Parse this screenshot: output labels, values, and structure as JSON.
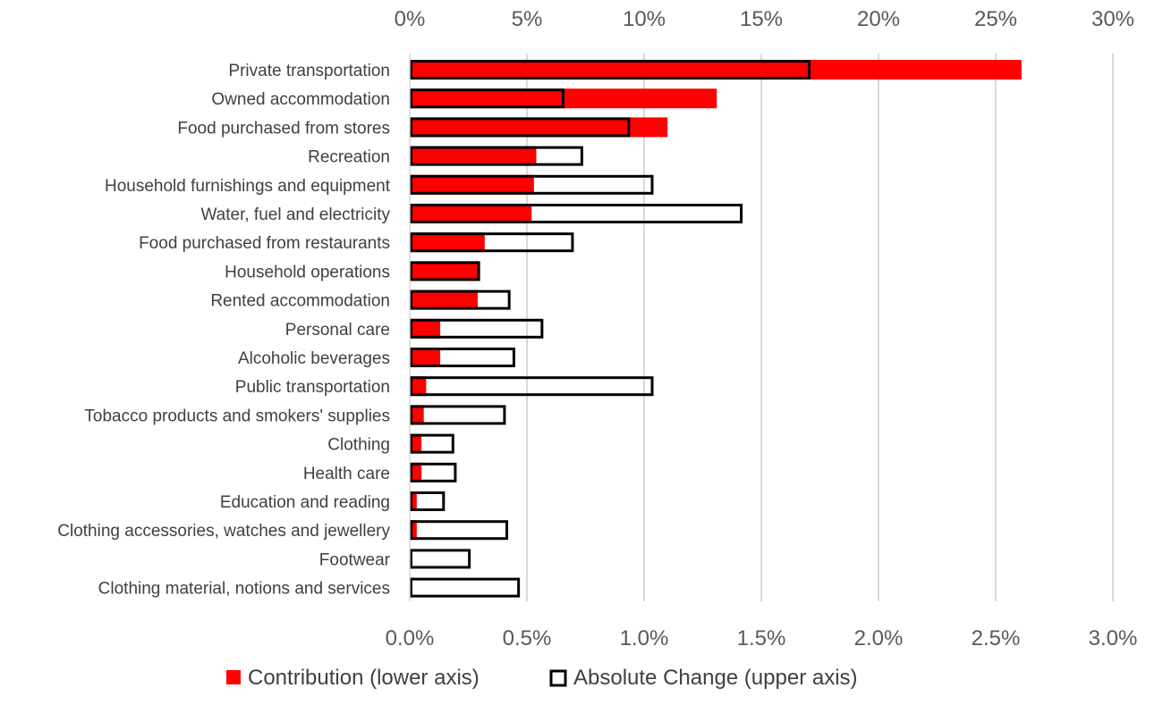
{
  "chart_data": {
    "type": "bar",
    "orientation": "horizontal",
    "title": "",
    "categories": [
      "Private transportation",
      "Owned accommodation",
      "Food purchased from stores",
      "Recreation",
      "Household furnishings and equipment",
      "Water, fuel and electricity",
      "Food purchased from restaurants",
      "Household operations",
      "Rented accommodation",
      "Personal care",
      "Alcoholic beverages",
      "Public transportation",
      "Tobacco products and smokers' supplies",
      "Clothing",
      "Health care",
      "Education and reading",
      "Clothing accessories, watches and jewellery",
      "Footwear",
      "Clothing material, notions and services"
    ],
    "series": [
      {
        "name": "Contribution (lower axis)",
        "axis": "lower",
        "style": "filled",
        "color": "#ff0000",
        "values": [
          2.61,
          1.31,
          1.1,
          0.54,
          0.53,
          0.52,
          0.32,
          0.3,
          0.29,
          0.13,
          0.13,
          0.07,
          0.06,
          0.05,
          0.05,
          0.03,
          0.03,
          0.01,
          0.01
        ]
      },
      {
        "name": "Absolute Change (upper axis)",
        "axis": "upper",
        "style": "outline",
        "color": "#000000",
        "values": [
          17.1,
          6.6,
          9.4,
          7.4,
          10.4,
          14.2,
          7.0,
          3.0,
          4.3,
          5.7,
          4.5,
          10.4,
          4.1,
          1.9,
          2.0,
          1.5,
          4.2,
          2.6,
          4.7
        ]
      }
    ],
    "lower_axis": {
      "min": 0,
      "max": 3.0,
      "ticks": [
        "0.0%",
        "0.5%",
        "1.0%",
        "1.5%",
        "2.0%",
        "2.5%",
        "3.0%"
      ]
    },
    "upper_axis": {
      "min": 0,
      "max": 30,
      "ticks": [
        "0%",
        "5%",
        "10%",
        "15%",
        "20%",
        "25%",
        "30%"
      ]
    },
    "grid": true,
    "legend": "bottom"
  }
}
